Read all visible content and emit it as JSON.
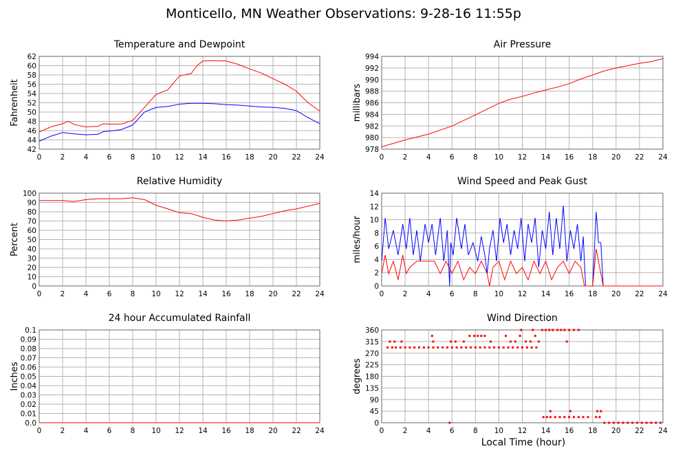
{
  "page": {
    "title": "Monticello, MN Weather Observations: 9-28-16 11:55p",
    "xlabel": "Local Time (hour)"
  },
  "colors": {
    "red": "#ff0000",
    "blue": "#0000ff",
    "grid": "#b3b3b3",
    "frame": "#666666"
  },
  "chart_data": [
    {
      "id": "temp",
      "type": "line",
      "title": "Temperature and Dewpoint",
      "ylabel": "Fahrenheit",
      "xlim": [
        0,
        24
      ],
      "ylim": [
        42,
        62
      ],
      "xticks": [
        "0",
        "2",
        "4",
        "6",
        "8",
        "10",
        "12",
        "14",
        "16",
        "18",
        "20",
        "22",
        "24"
      ],
      "yticks": [
        "42",
        "44",
        "46",
        "48",
        "50",
        "52",
        "54",
        "56",
        "58",
        "60",
        "62"
      ],
      "grid": true,
      "series": [
        {
          "color": "#ff0000",
          "x": [
            0,
            1,
            2,
            2.5,
            3,
            4,
            5,
            5.5,
            6,
            7,
            8,
            9,
            10,
            11,
            12,
            13,
            13.5,
            14,
            15,
            16,
            17,
            18,
            19,
            20,
            21,
            22,
            23,
            24
          ],
          "y": [
            45.7,
            46.8,
            47.5,
            48.0,
            47.3,
            46.8,
            46.9,
            47.5,
            47.4,
            47.4,
            48.2,
            51.0,
            53.8,
            54.8,
            57.8,
            58.3,
            60.0,
            61.0,
            61.1,
            61.0,
            60.3,
            59.3,
            58.4,
            57.2,
            56.0,
            54.5,
            52.0,
            50.2
          ]
        },
        {
          "color": "#0000ff",
          "x": [
            0,
            1,
            2,
            3,
            4,
            5,
            5.5,
            6,
            7,
            8,
            9,
            10,
            11,
            12,
            13,
            14,
            15,
            16,
            17,
            18,
            19,
            20,
            21,
            22,
            23,
            24
          ],
          "y": [
            43.7,
            44.8,
            45.6,
            45.3,
            45.1,
            45.2,
            45.8,
            45.9,
            46.2,
            47.2,
            50.0,
            51.0,
            51.2,
            51.7,
            51.9,
            51.9,
            51.8,
            51.6,
            51.5,
            51.3,
            51.1,
            51.0,
            50.8,
            50.3,
            48.8,
            47.5
          ]
        }
      ]
    },
    {
      "id": "pressure",
      "type": "line",
      "title": "Air Pressure",
      "ylabel": "millibars",
      "xlim": [
        0,
        24
      ],
      "ylim": [
        978,
        994
      ],
      "xticks": [
        "0",
        "2",
        "4",
        "6",
        "8",
        "10",
        "12",
        "14",
        "16",
        "18",
        "20",
        "22",
        "24"
      ],
      "yticks": [
        "978",
        "980",
        "982",
        "984",
        "986",
        "988",
        "990",
        "992",
        "994"
      ],
      "grid": true,
      "series": [
        {
          "color": "#ff0000",
          "x": [
            0,
            2,
            4,
            6,
            8,
            10,
            11,
            12,
            13,
            14,
            15,
            16,
            17,
            18,
            19,
            20,
            21,
            22,
            23,
            24
          ],
          "y": [
            978.4,
            979.6,
            980.6,
            982.0,
            983.9,
            985.9,
            986.6,
            987.1,
            987.7,
            988.2,
            988.7,
            989.3,
            990.1,
            990.8,
            991.5,
            992.0,
            992.4,
            992.8,
            993.1,
            993.6
          ]
        }
      ]
    },
    {
      "id": "humidity",
      "type": "line",
      "title": "Relative Humidity",
      "ylabel": "Percent",
      "xlim": [
        0,
        24
      ],
      "ylim": [
        0,
        100
      ],
      "xticks": [
        "0",
        "2",
        "4",
        "6",
        "8",
        "10",
        "12",
        "14",
        "16",
        "18",
        "20",
        "22",
        "24"
      ],
      "yticks": [
        "0",
        "10",
        "20",
        "30",
        "40",
        "50",
        "60",
        "70",
        "80",
        "90",
        "100"
      ],
      "grid": true,
      "series": [
        {
          "color": "#ff0000",
          "x": [
            0,
            2,
            3,
            4,
            5,
            6,
            7,
            8,
            9,
            10,
            11,
            12,
            13,
            14,
            15,
            16,
            17,
            18,
            19,
            20,
            21,
            22,
            23,
            24
          ],
          "y": [
            92,
            92,
            91,
            93,
            94,
            94,
            94,
            95,
            93,
            87,
            83,
            79,
            78,
            74,
            71,
            70,
            71,
            73,
            75,
            78,
            81,
            83,
            86,
            89
          ]
        }
      ]
    },
    {
      "id": "wind",
      "type": "line",
      "title": "Wind Speed and Peak Gust",
      "ylabel": "miles/hour",
      "xlim": [
        0,
        24
      ],
      "ylim": [
        0,
        15
      ],
      "xticks": [
        "0",
        "2",
        "4",
        "6",
        "8",
        "10",
        "12",
        "14",
        "16",
        "18",
        "20",
        "22",
        "24"
      ],
      "yticks": [
        "0",
        "2",
        "4",
        "6",
        "8",
        "10",
        "12",
        "14"
      ],
      "grid": true,
      "series": [
        {
          "color": "#0000ff",
          "x": [
            0,
            0.3,
            0.6,
            1,
            1.4,
            1.8,
            2.1,
            2.4,
            2.7,
            3.0,
            3.3,
            3.7,
            4.0,
            4.3,
            4.6,
            5.0,
            5.3,
            5.6,
            5.8,
            5.9,
            6.1,
            6.4,
            6.8,
            7.1,
            7.4,
            7.8,
            8.2,
            8.5,
            8.8,
            9.0,
            9.2,
            9.5,
            9.8,
            10.1,
            10.4,
            10.7,
            11.0,
            11.3,
            11.6,
            11.9,
            12.2,
            12.5,
            12.8,
            13.1,
            13.4,
            13.7,
            14.0,
            14.3,
            14.6,
            14.9,
            15.2,
            15.5,
            15.8,
            16.1,
            16.4,
            16.7,
            17.0,
            17.2,
            17.4,
            17.6,
            18.0,
            18.3,
            18.5,
            18.7,
            18.9,
            19.2,
            20,
            24
          ],
          "y": [
            4,
            11,
            6,
            9,
            5,
            10,
            6,
            11,
            5,
            9,
            4,
            10,
            7,
            10,
            5,
            11,
            4,
            9,
            0,
            7,
            5,
            11,
            6,
            10,
            5,
            7,
            4,
            8,
            5,
            2,
            6,
            9,
            4,
            11,
            7,
            10,
            5,
            9,
            6,
            11,
            4,
            10,
            7,
            11,
            3,
            9,
            6,
            12,
            5,
            11,
            6,
            13,
            4,
            9,
            6,
            10,
            4,
            8,
            0,
            0,
            0,
            12,
            7,
            7,
            0,
            0,
            0,
            0
          ]
        },
        {
          "color": "#ff0000",
          "x": [
            0,
            0.3,
            0.6,
            1,
            1.4,
            1.8,
            2.1,
            2.4,
            3,
            4,
            4.5,
            5,
            5.5,
            6,
            6.5,
            7,
            7.5,
            8,
            8.5,
            9,
            9.2,
            9.5,
            10,
            10.5,
            11,
            11.5,
            12,
            12.5,
            13,
            13.5,
            14,
            14.5,
            15,
            15.5,
            16,
            16.5,
            17,
            17.3,
            17.6,
            18,
            18.3,
            18.6,
            18.9,
            19.2,
            24
          ],
          "y": [
            2,
            5,
            2,
            4,
            1,
            5,
            2,
            3,
            4,
            4,
            4,
            2,
            4,
            2,
            4,
            1,
            3,
            2,
            4,
            2,
            0,
            3,
            4,
            1,
            4,
            2,
            3,
            1,
            4,
            2,
            4,
            1,
            3,
            4,
            2,
            4,
            3,
            0,
            0,
            0,
            6,
            3,
            0,
            0,
            0
          ]
        }
      ]
    },
    {
      "id": "rain",
      "type": "line",
      "title": "24 hour Accumulated Rainfall",
      "ylabel": "Inches",
      "xlim": [
        0,
        24
      ],
      "ylim": [
        0,
        0.1
      ],
      "xticks": [
        "0",
        "2",
        "4",
        "6",
        "8",
        "10",
        "12",
        "14",
        "16",
        "18",
        "20",
        "22",
        "24"
      ],
      "yticks": [
        "0.0",
        "0.01",
        "0.02",
        "0.03",
        "0.04",
        "0.05",
        "0.06",
        "0.07",
        "0.08",
        "0.09",
        "0.1"
      ],
      "grid": true,
      "series": [
        {
          "color": "#ff0000",
          "x": [
            0,
            24
          ],
          "y": [
            0,
            0
          ]
        }
      ]
    },
    {
      "id": "winddir",
      "type": "scatter",
      "title": "Wind Direction",
      "ylabel": "degrees",
      "xlim": [
        0,
        24
      ],
      "ylim": [
        0,
        360
      ],
      "xticks": [
        "0",
        "2",
        "4",
        "6",
        "8",
        "10",
        "12",
        "14",
        "16",
        "18",
        "20",
        "22",
        "24"
      ],
      "yticks": [
        "0",
        "45",
        "90",
        "135",
        "180",
        "225",
        "270",
        "315",
        "360"
      ],
      "grid": true,
      "series": [
        {
          "color": "#ff0000",
          "x": [
            0.5,
            0.9,
            1.2,
            1.6,
            2.0,
            2.4,
            2.8,
            3.2,
            3.6,
            4.0,
            4.4,
            4.8,
            5.2,
            5.6,
            5.8,
            6.0,
            6.4,
            6.8,
            7.2,
            7.6,
            8.0,
            8.4,
            8.8,
            9.2,
            9.6,
            10.0,
            10.4,
            10.8,
            11.2,
            11.6,
            12.0,
            12.4,
            12.8,
            13.2,
            0.7,
            1.1,
            1.7,
            4.3,
            4.4,
            5.9,
            6.3,
            7.0,
            7.5,
            7.9,
            8.2,
            8.5,
            8.8,
            9.3,
            10.6,
            11.0,
            11.4,
            11.8,
            12.3,
            12.7,
            13.1,
            13.4,
            15.8,
            11.9,
            12.9,
            13.7,
            14.0,
            14.3,
            14.6,
            15.0,
            15.3,
            15.6,
            16.0,
            16.4,
            16.8,
            13.8,
            14.1,
            14.4,
            14.8,
            15.2,
            15.6,
            16.0,
            16.4,
            16.8,
            17.2,
            17.6,
            18.3,
            18.6,
            19.0,
            19.4,
            19.8,
            20.2,
            20.6,
            21.0,
            21.4,
            21.8,
            22.2,
            22.6,
            23.0,
            23.4,
            23.8,
            14.4,
            16.1,
            18.4,
            18.7
          ],
          "y": [
            292,
            292,
            292,
            292,
            292,
            292,
            292,
            292,
            292,
            292,
            292,
            292,
            292,
            292,
            0,
            292,
            292,
            292,
            292,
            292,
            292,
            292,
            292,
            292,
            292,
            292,
            292,
            292,
            292,
            292,
            292,
            292,
            292,
            292,
            315,
            315,
            315,
            337,
            315,
            315,
            315,
            315,
            337,
            337,
            337,
            337,
            337,
            315,
            337,
            315,
            315,
            337,
            315,
            315,
            337,
            315,
            315,
            360,
            360,
            360,
            360,
            360,
            360,
            360,
            360,
            360,
            360,
            360,
            360,
            22,
            22,
            22,
            22,
            22,
            22,
            22,
            22,
            22,
            22,
            22,
            22,
            22,
            0,
            0,
            0,
            0,
            0,
            0,
            0,
            0,
            0,
            0,
            0,
            0,
            0,
            45,
            45,
            45,
            45
          ]
        }
      ]
    }
  ]
}
